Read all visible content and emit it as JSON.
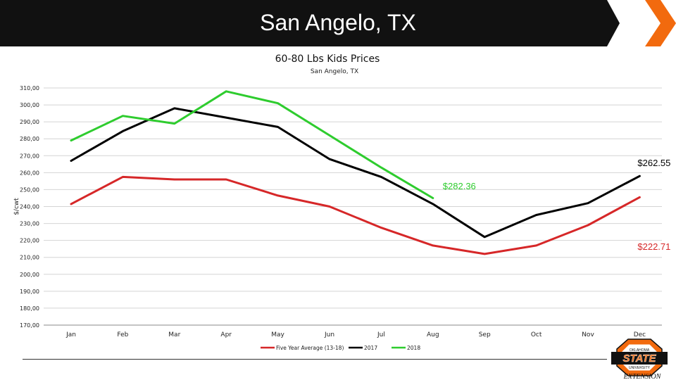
{
  "header": {
    "title": "San Angelo, TX",
    "accent_color": "#f26a0e",
    "banner_color": "#111111"
  },
  "chart_data": {
    "type": "line",
    "title": "60-80 Lbs Kids Prices",
    "subtitle": "San Angelo, TX",
    "ylabel": "$/cwt",
    "xlabel": "",
    "ylim": [
      170,
      310
    ],
    "yticks": [
      170,
      180,
      190,
      200,
      210,
      220,
      230,
      240,
      250,
      260,
      270,
      280,
      290,
      300,
      310
    ],
    "ytick_labels": [
      "170,00",
      "180,00",
      "190,00",
      "200,00",
      "210,00",
      "220,00",
      "230,00",
      "240,00",
      "250,00",
      "260,00",
      "270,00",
      "280,00",
      "290,00",
      "300,00",
      "310,00"
    ],
    "categories": [
      "Jan",
      "Feb",
      "Mar",
      "Apr",
      "May",
      "Jun",
      "Jul",
      "Aug",
      "Sep",
      "Oct",
      "Nov",
      "Dec"
    ],
    "grid": true,
    "legend_position": "bottom",
    "series": [
      {
        "name": "Five Year Average (13-18)",
        "color": "#d62728",
        "values": [
          241.5,
          257.5,
          256,
          256,
          246.5,
          240,
          227.5,
          217,
          212,
          217,
          229,
          245.5
        ]
      },
      {
        "name": "2017",
        "color": "#000000",
        "values": [
          267,
          284.5,
          298,
          292.5,
          287,
          268,
          257.5,
          241.5,
          222,
          235,
          242,
          258
        ]
      },
      {
        "name": "2018",
        "color": "#2ecc2e",
        "values": [
          279,
          293.5,
          289,
          308,
          301,
          282,
          263,
          245,
          null,
          null,
          null,
          null
        ]
      }
    ],
    "annotations": [
      {
        "text": "$262.55",
        "color": "#000000",
        "anchor_category": "Dec",
        "anchor_value": 262.55
      },
      {
        "text": "$282.36",
        "color": "#2ecc2e",
        "anchor_category": "Aug",
        "anchor_value": 249
      },
      {
        "text": "$222.71",
        "color": "#d62728",
        "anchor_category": "Dec",
        "anchor_value": 216.5
      }
    ]
  },
  "logo": {
    "text_top": "OKLAHOMA",
    "text_main": "STATE",
    "text_sub": "UNIVERSITY",
    "text_bottom": "EXTENSION"
  }
}
